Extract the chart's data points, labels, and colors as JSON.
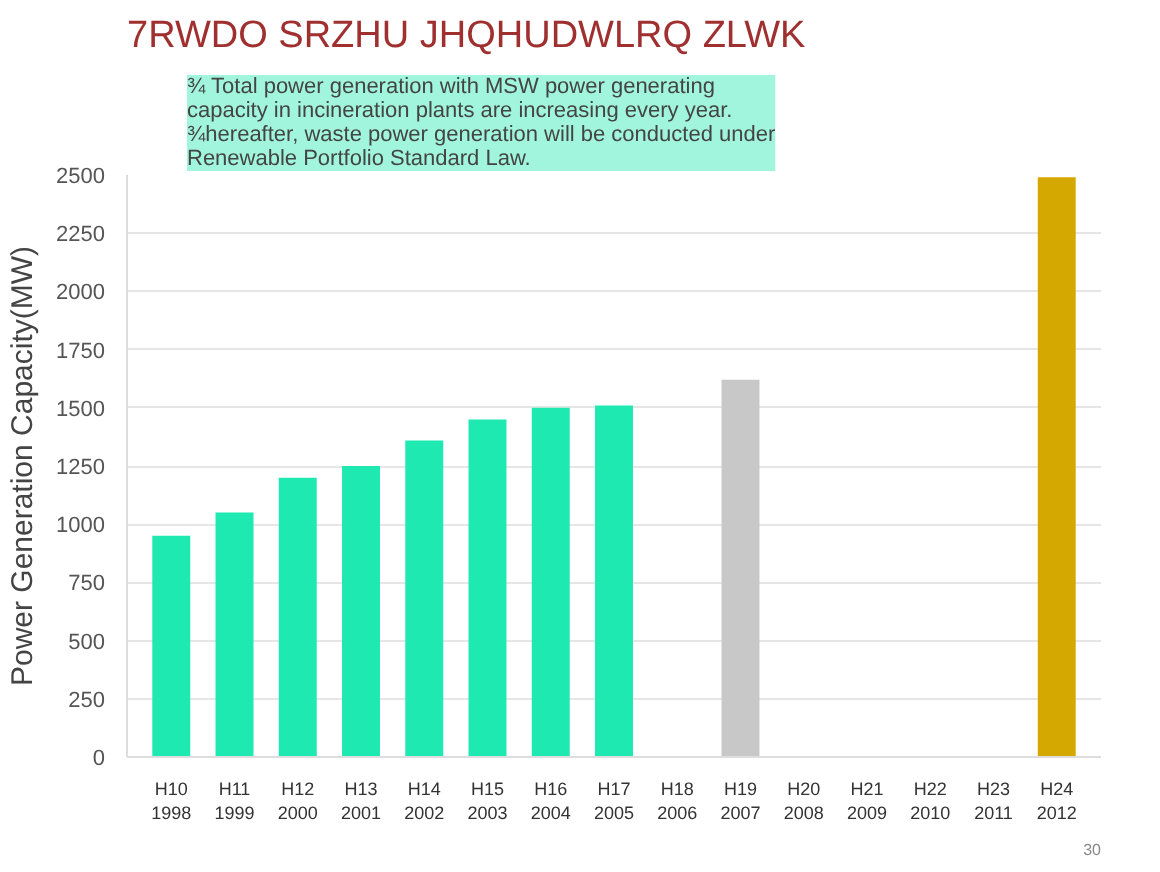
{
  "chart_data": {
    "type": "bar",
    "title": "7RWDO SRZHU JHQHUDWLRQ ZLWK",
    "ylabel": "Power Generation Capacity(MW)",
    "categories": [
      "H10\n1998",
      "H11\n1999",
      "H12\n2000",
      "H13\n2001",
      "H14\n2002",
      "H15\n2003",
      "H16\n2004",
      "H17\n2005",
      "H18\n2006",
      "H19\n2007",
      "H20\n2008",
      "H21\n2009",
      "H22\n2010",
      "H23\n2011",
      "H24\n2012"
    ],
    "values": [
      950,
      1050,
      1200,
      1250,
      1360,
      1450,
      1500,
      1510,
      null,
      1620,
      null,
      null,
      null,
      null,
      2490
    ],
    "colors": [
      "#1de9b0",
      "#1de9b0",
      "#1de9b0",
      "#1de9b0",
      "#1de9b0",
      "#1de9b0",
      "#1de9b0",
      "#1de9b0",
      "#1de9b0",
      "#c8c8c8",
      "#1de9b0",
      "#1de9b0",
      "#1de9b0",
      "#1de9b0",
      "#d4a800"
    ],
    "ylim": [
      0,
      2500
    ],
    "yticks": [
      0,
      250,
      500,
      750,
      1000,
      1250,
      1500,
      1750,
      2000,
      2250,
      2500
    ],
    "grid": "y",
    "annotations": [
      "¾ Total power generation with MSW power generating\ncapacity in incineration plants are increasing every year.\n¾hereafter, waste power generation will be conducted under\nRenewable Portfolio Standard Law.",
      "30"
    ]
  }
}
